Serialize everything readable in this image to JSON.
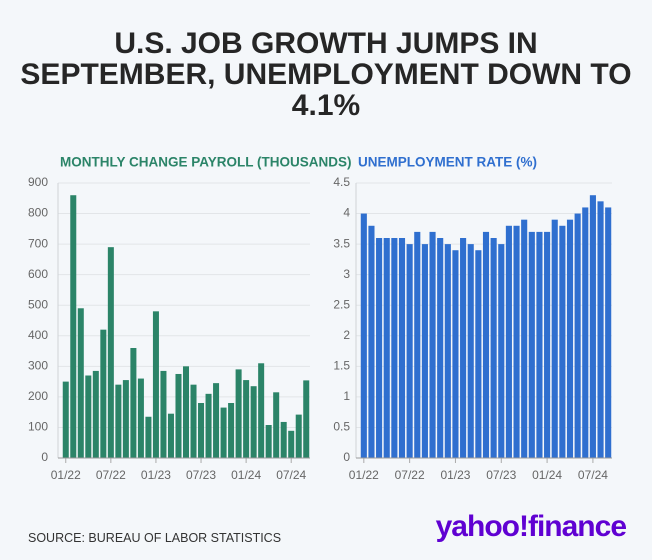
{
  "title": "U.S. JOB GROWTH JUMPS IN SEPTEMBER, UNEMPLOYMENT DOWN TO 4.1%",
  "source": "SOURCE: BUREAU OF LABOR STATISTICS",
  "logo": {
    "brand": "yahoo!",
    "product": "finance"
  },
  "chart_data": [
    {
      "type": "bar",
      "title": "MONTHLY CHANGE PAYROLL (THOUSANDS)",
      "color": "#2b8468",
      "categories": [
        "01/22",
        null,
        null,
        null,
        null,
        null,
        "07/22",
        null,
        null,
        null,
        null,
        null,
        "01/23",
        null,
        null,
        null,
        null,
        null,
        "07/23",
        null,
        null,
        null,
        null,
        null,
        "01/24",
        null,
        null,
        null,
        null,
        null,
        "07/24",
        null,
        null
      ],
      "values": [
        250,
        860,
        490,
        270,
        285,
        420,
        690,
        240,
        255,
        360,
        260,
        135,
        480,
        285,
        145,
        275,
        300,
        240,
        180,
        210,
        245,
        165,
        180,
        290,
        255,
        235,
        310,
        108,
        215,
        118,
        89,
        142,
        254
      ],
      "ylim": [
        0,
        900
      ],
      "yticks": [
        0,
        100,
        200,
        300,
        400,
        500,
        600,
        700,
        800,
        900
      ],
      "grid": true
    },
    {
      "type": "bar",
      "title": "UNEMPLOYMENT RATE (%)",
      "color": "#2f6fcf",
      "categories": [
        "01/22",
        null,
        null,
        null,
        null,
        null,
        "07/22",
        null,
        null,
        null,
        null,
        null,
        "01/23",
        null,
        null,
        null,
        null,
        null,
        "07/23",
        null,
        null,
        null,
        null,
        null,
        "01/24",
        null,
        null,
        null,
        null,
        null,
        "07/24",
        null,
        null
      ],
      "values": [
        4.0,
        3.8,
        3.6,
        3.6,
        3.6,
        3.6,
        3.5,
        3.7,
        3.5,
        3.7,
        3.6,
        3.5,
        3.4,
        3.6,
        3.5,
        3.4,
        3.7,
        3.6,
        3.5,
        3.8,
        3.8,
        3.9,
        3.7,
        3.7,
        3.7,
        3.9,
        3.8,
        3.9,
        4.0,
        4.1,
        4.3,
        4.2,
        4.1
      ],
      "ylim": [
        0,
        4.5
      ],
      "yticks": [
        0,
        0.5,
        1,
        1.5,
        2,
        2.5,
        3,
        3.5,
        4,
        4.5
      ],
      "grid": true
    }
  ]
}
